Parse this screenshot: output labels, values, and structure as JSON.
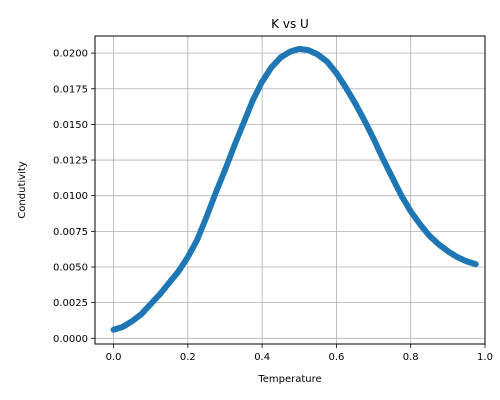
{
  "chart_data": {
    "type": "scatter",
    "title": "K vs U",
    "xlabel": "Temperature",
    "ylabel": "Condutivity",
    "xlim": [
      -0.05,
      1.0
    ],
    "ylim": [
      -0.0004,
      0.0212
    ],
    "xticks": [
      "0.0",
      "0.2",
      "0.4",
      "0.6",
      "0.8",
      "1.0"
    ],
    "yticks": [
      "0.0000",
      "0.0025",
      "0.0050",
      "0.0075",
      "0.0100",
      "0.0125",
      "0.0150",
      "0.0175",
      "0.0200"
    ],
    "grid": true,
    "marker_color": "#1f77b4",
    "series": [
      {
        "x": [
          0.0,
          0.025,
          0.05,
          0.075,
          0.1,
          0.125,
          0.15,
          0.175,
          0.2,
          0.225,
          0.25,
          0.275,
          0.3,
          0.325,
          0.35,
          0.375,
          0.4,
          0.425,
          0.45,
          0.475,
          0.5,
          0.525,
          0.55,
          0.575,
          0.6,
          0.625,
          0.65,
          0.675,
          0.7,
          0.725,
          0.75,
          0.775,
          0.8,
          0.825,
          0.85,
          0.875,
          0.9,
          0.925,
          0.95,
          0.975
        ],
        "y": [
          0.0006,
          0.0008,
          0.0012,
          0.0017,
          0.0024,
          0.0031,
          0.0039,
          0.0047,
          0.0057,
          0.0069,
          0.0085,
          0.0102,
          0.0118,
          0.0135,
          0.0151,
          0.0167,
          0.018,
          0.019,
          0.0197,
          0.0201,
          0.0203,
          0.0202,
          0.0199,
          0.0194,
          0.0186,
          0.0176,
          0.0165,
          0.0153,
          0.014,
          0.0126,
          0.0113,
          0.01,
          0.0089,
          0.008,
          0.0072,
          0.0066,
          0.0061,
          0.0057,
          0.0054,
          0.0052
        ]
      }
    ]
  }
}
